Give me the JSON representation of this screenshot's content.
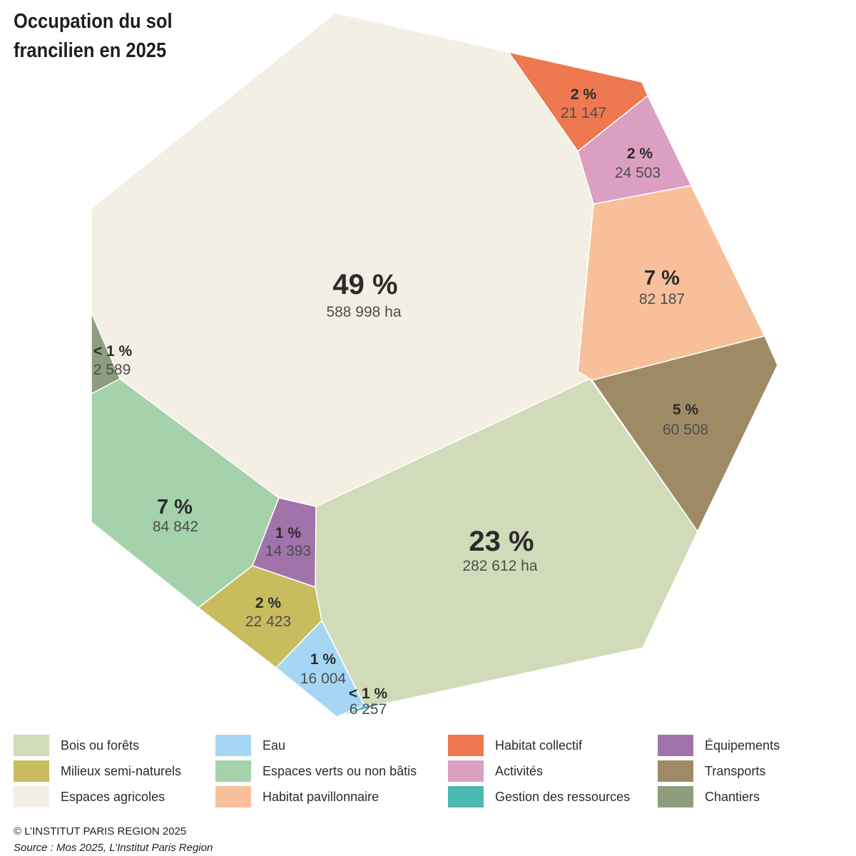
{
  "chart_data": {
    "type": "pie",
    "title_lines": [
      "Occupation du sol",
      "francilien en 2025"
    ],
    "unit_label": "ha",
    "series": [
      {
        "name": "Espaces agricoles",
        "percent_label": "49 %",
        "value_label": "588 998 ha",
        "value": 588998,
        "color": "#f3efe4"
      },
      {
        "name": "Bois ou forêts",
        "percent_label": "23 %",
        "value_label": "282 612 ha",
        "value": 282612,
        "color": "#d1dbb9"
      },
      {
        "name": "Espaces verts ou non bâtis",
        "percent_label": "7 %",
        "value_label": "84 842",
        "value": 84842,
        "color": "#a5d1ab"
      },
      {
        "name": "Habitat pavillonnaire",
        "percent_label": "7 %",
        "value_label": "82 187",
        "value": 82187,
        "color": "#f8c09a"
      },
      {
        "name": "Transports",
        "percent_label": "5 %",
        "value_label": "60 508",
        "value": 60508,
        "color": "#9e8b66"
      },
      {
        "name": "Activités",
        "percent_label": "2 %",
        "value_label": "24 503",
        "value": 24503,
        "color": "#db9fc2"
      },
      {
        "name": "Milieux semi-naturels",
        "percent_label": "2 %",
        "value_label": "22 423",
        "value": 22423,
        "color": "#c8bc5f"
      },
      {
        "name": "Habitat collectif",
        "percent_label": "2 %",
        "value_label": "21 147",
        "value": 21147,
        "color": "#ee7850"
      },
      {
        "name": "Eau",
        "percent_label": "1 %",
        "value_label": "16 004",
        "value": 16004,
        "color": "#a5d7f5"
      },
      {
        "name": "Équipements",
        "percent_label": "1 %",
        "value_label": "14 393",
        "value": 14393,
        "color": "#a173aa"
      },
      {
        "name": "Gestion des ressources",
        "percent_label": "< 1 %",
        "value_label": "6 257",
        "value": 6257,
        "color": "#4bb8b1"
      },
      {
        "name": "Chantiers",
        "percent_label": "< 1 %",
        "value_label": "2 589",
        "value": 2589,
        "color": "#8e9d7e"
      }
    ],
    "legend": [
      [
        "Bois ou forêts",
        "Milieux semi-naturels",
        "Espaces agricoles"
      ],
      [
        "Eau",
        "Espaces verts ou non bâtis",
        "Habitat pavillonnaire"
      ],
      [
        "Habitat collectif",
        "Activités",
        "Gestion des ressources"
      ],
      [
        "Équipements",
        "Transports",
        "Chantiers"
      ]
    ]
  },
  "footer": {
    "credit": "© L’INSTITUT PARIS REGION 2025",
    "source": "Source : Mos 2025, L’Institut Paris Region"
  }
}
